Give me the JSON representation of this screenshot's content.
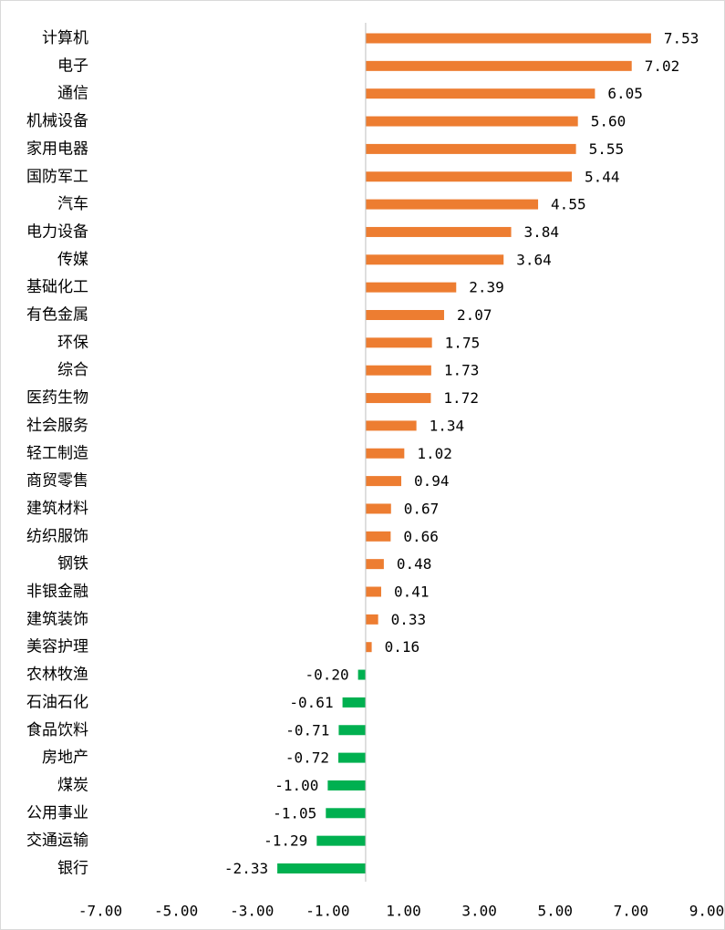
{
  "colors": {
    "positive": "#ED7D31",
    "negative": "#00B050",
    "axis": "#BFBFBF"
  },
  "chart_data": {
    "type": "bar",
    "orientation": "horizontal",
    "title": "",
    "xlabel": "",
    "ylabel": "",
    "xlim": [
      -7,
      9
    ],
    "x_ticks": [
      -7,
      -5,
      -3,
      -1,
      1,
      3,
      5,
      7,
      9
    ],
    "x_tick_labels": [
      "-7.00",
      "-5.00",
      "-3.00",
      "-1.00",
      "1.00",
      "3.00",
      "5.00",
      "7.00",
      "9.00"
    ],
    "grid": false,
    "legend": "none",
    "categories": [
      "计算机",
      "电子",
      "通信",
      "机械设备",
      "家用电器",
      "国防军工",
      "汽车",
      "电力设备",
      "传媒",
      "基础化工",
      "有色金属",
      "环保",
      "综合",
      "医药生物",
      "社会服务",
      "轻工制造",
      "商贸零售",
      "建筑材料",
      "纺织服饰",
      "钢铁",
      "非银金融",
      "建筑装饰",
      "美容护理",
      "农林牧渔",
      "石油石化",
      "食品饮料",
      "房地产",
      "煤炭",
      "公用事业",
      "交通运输",
      "银行"
    ],
    "values": [
      7.53,
      7.02,
      6.05,
      5.6,
      5.55,
      5.44,
      4.55,
      3.84,
      3.64,
      2.39,
      2.07,
      1.75,
      1.73,
      1.72,
      1.34,
      1.02,
      0.94,
      0.67,
      0.66,
      0.48,
      0.41,
      0.33,
      0.16,
      -0.2,
      -0.61,
      -0.71,
      -0.72,
      -1.0,
      -1.05,
      -1.29,
      -2.33
    ],
    "value_labels": [
      "7.53",
      "7.02",
      "6.05",
      "5.60",
      "5.55",
      "5.44",
      "4.55",
      "3.84",
      "3.64",
      "2.39",
      "2.07",
      "1.75",
      "1.73",
      "1.72",
      "1.34",
      "1.02",
      "0.94",
      "0.67",
      "0.66",
      "0.48",
      "0.41",
      "0.33",
      "0.16",
      "-0.20",
      "-0.61",
      "-0.71",
      "-0.72",
      "-1.00",
      "-1.05",
      "-1.29",
      "-2.33"
    ]
  }
}
